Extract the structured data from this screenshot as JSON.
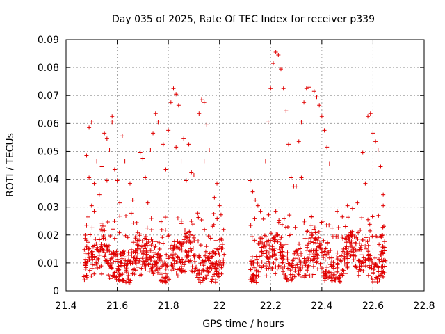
{
  "chart_data": {
    "type": "scatter",
    "title": "Day 035 of 2025, Rate Of TEC Index for receiver p339",
    "xlabel": "GPS time / hours",
    "ylabel": "ROTI / TECUs",
    "xlim": [
      21.4,
      22.8
    ],
    "ylim": [
      0,
      0.09
    ],
    "grid": true,
    "marker": "+",
    "color": "#e00000",
    "xticks": [
      21.4,
      21.6,
      21.8,
      22.0,
      22.2,
      22.4,
      22.6,
      22.8
    ],
    "xtick_labels": [
      "21.4",
      "21.6",
      "21.8",
      "22",
      "22.2",
      "22.4",
      "22.6",
      "22.8"
    ],
    "yticks": [
      0,
      0.01,
      0.02,
      0.03,
      0.04,
      0.05,
      0.06,
      0.07,
      0.08,
      0.09
    ],
    "ytick_labels": [
      "0",
      "0.01",
      "0.02",
      "0.03",
      "0.04",
      "0.05",
      "0.06",
      "0.07",
      "0.08",
      "0.09"
    ],
    "series": [
      {
        "name": "ROTI",
        "points": [
          [
            21.48,
            0.0485
          ],
          [
            21.49,
            0.0585
          ],
          [
            21.5,
            0.0605
          ],
          [
            21.49,
            0.0405
          ],
          [
            21.51,
            0.0385
          ],
          [
            21.52,
            0.0465
          ],
          [
            21.5,
            0.0305
          ],
          [
            21.53,
            0.0345
          ],
          [
            21.48,
            0.0235
          ],
          [
            21.51,
            0.0285
          ],
          [
            21.55,
            0.0565
          ],
          [
            21.56,
            0.0545
          ],
          [
            21.57,
            0.0505
          ],
          [
            21.58,
            0.0605
          ],
          [
            21.58,
            0.0625
          ],
          [
            21.59,
            0.0435
          ],
          [
            21.56,
            0.0395
          ],
          [
            21.6,
            0.0395
          ],
          [
            21.62,
            0.0555
          ],
          [
            21.63,
            0.0465
          ],
          [
            21.61,
            0.0315
          ],
          [
            21.66,
            0.0325
          ],
          [
            21.69,
            0.0495
          ],
          [
            21.7,
            0.0475
          ],
          [
            21.71,
            0.0405
          ],
          [
            21.73,
            0.0505
          ],
          [
            21.74,
            0.0565
          ],
          [
            21.75,
            0.0635
          ],
          [
            21.76,
            0.0605
          ],
          [
            21.78,
            0.0525
          ],
          [
            21.79,
            0.0435
          ],
          [
            21.8,
            0.0575
          ],
          [
            21.81,
            0.0675
          ],
          [
            21.82,
            0.0725
          ],
          [
            21.83,
            0.0705
          ],
          [
            21.84,
            0.0665
          ],
          [
            21.83,
            0.0515
          ],
          [
            21.85,
            0.0465
          ],
          [
            21.86,
            0.0545
          ],
          [
            21.88,
            0.0525
          ],
          [
            21.87,
            0.0395
          ],
          [
            21.89,
            0.0425
          ],
          [
            21.9,
            0.0415
          ],
          [
            21.92,
            0.0635
          ],
          [
            21.93,
            0.0685
          ],
          [
            21.94,
            0.0675
          ],
          [
            21.95,
            0.0595
          ],
          [
            21.96,
            0.0505
          ],
          [
            21.94,
            0.0465
          ],
          [
            21.99,
            0.0385
          ],
          [
            21.98,
            0.0335
          ],
          [
            22.0,
            0.0305
          ],
          [
            21.72,
            0.0315
          ],
          [
            21.65,
            0.0385
          ],
          [
            21.54,
            0.0445
          ],
          [
            22.12,
            0.0395
          ],
          [
            22.13,
            0.0355
          ],
          [
            22.14,
            0.0325
          ],
          [
            22.16,
            0.0285
          ],
          [
            22.18,
            0.0465
          ],
          [
            22.19,
            0.0605
          ],
          [
            22.2,
            0.0725
          ],
          [
            22.21,
            0.0815
          ],
          [
            22.22,
            0.0855
          ],
          [
            22.23,
            0.0845
          ],
          [
            22.24,
            0.0795
          ],
          [
            22.25,
            0.0725
          ],
          [
            22.26,
            0.0645
          ],
          [
            22.27,
            0.0525
          ],
          [
            22.28,
            0.0405
          ],
          [
            22.29,
            0.0375
          ],
          [
            22.31,
            0.0535
          ],
          [
            22.32,
            0.0605
          ],
          [
            22.33,
            0.0675
          ],
          [
            22.34,
            0.0725
          ],
          [
            22.35,
            0.073
          ],
          [
            22.37,
            0.0715
          ],
          [
            22.38,
            0.0695
          ],
          [
            22.39,
            0.0665
          ],
          [
            22.4,
            0.0625
          ],
          [
            22.41,
            0.0575
          ],
          [
            22.42,
            0.0515
          ],
          [
            22.43,
            0.0455
          ],
          [
            22.32,
            0.0405
          ],
          [
            22.3,
            0.0375
          ],
          [
            22.46,
            0.0285
          ],
          [
            22.48,
            0.0265
          ],
          [
            22.5,
            0.0305
          ],
          [
            22.52,
            0.0295
          ],
          [
            22.54,
            0.0315
          ],
          [
            22.57,
            0.0385
          ],
          [
            22.56,
            0.0495
          ],
          [
            22.58,
            0.0625
          ],
          [
            22.59,
            0.0635
          ],
          [
            22.6,
            0.0565
          ],
          [
            22.61,
            0.0535
          ],
          [
            22.62,
            0.0505
          ],
          [
            22.63,
            0.0445
          ],
          [
            22.64,
            0.0345
          ],
          [
            22.64,
            0.0305
          ],
          [
            22.15,
            0.0305
          ],
          [
            22.22,
            0.0285
          ],
          [
            22.36,
            0.0265
          ],
          [
            22.44,
            0.0225
          ],
          [
            22.58,
            0.0255
          ]
        ]
      }
    ],
    "dense_band": {
      "segments": [
        [
          21.47,
          22.02
        ],
        [
          22.12,
          22.65
        ]
      ],
      "lower_bound": 0.003,
      "typical_range": [
        0.005,
        0.02
      ],
      "upper_tail": 0.028
    }
  }
}
